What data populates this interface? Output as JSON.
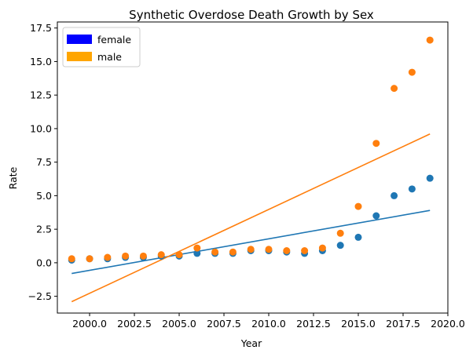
{
  "chart_data": {
    "type": "scatter",
    "title": "Synthetic Overdose Death Growth by Sex",
    "xlabel": "Year",
    "ylabel": "Rate",
    "xlim": [
      1998.2,
      2020.0
    ],
    "ylim": [
      -3.75,
      17.95
    ],
    "xticks": [
      "2000.0",
      "2002.5",
      "2005.0",
      "2007.5",
      "2010.0",
      "2012.5",
      "2015.0",
      "2017.5",
      "2020.0"
    ],
    "xtick_values": [
      2000.0,
      2002.5,
      2005.0,
      2007.5,
      2010.0,
      2012.5,
      2015.0,
      2017.5,
      2020.0
    ],
    "yticks": [
      "−2.5",
      "0.0",
      "2.5",
      "5.0",
      "7.5",
      "10.0",
      "12.5",
      "15.0",
      "17.5"
    ],
    "ytick_values": [
      -2.5,
      0.0,
      2.5,
      5.0,
      7.5,
      10.0,
      12.5,
      15.0,
      17.5
    ],
    "grid": false,
    "legend_position": "top-left",
    "x": [
      1999,
      2000,
      2001,
      2002,
      2003,
      2004,
      2005,
      2006,
      2007,
      2008,
      2009,
      2010,
      2011,
      2012,
      2013,
      2014,
      2015,
      2016,
      2017,
      2018,
      2019
    ],
    "series": [
      {
        "name": "female",
        "legend_color": "#0000ff",
        "color": "#1f77b4",
        "values": [
          0.2,
          0.3,
          0.3,
          0.4,
          0.4,
          0.5,
          0.5,
          0.7,
          0.7,
          0.7,
          0.9,
          0.9,
          0.8,
          0.7,
          0.9,
          1.3,
          1.9,
          3.5,
          5.0,
          5.5,
          6.3
        ],
        "fit": {
          "x": [
            1999,
            2019
          ],
          "y": [
            -0.8,
            3.9
          ]
        }
      },
      {
        "name": "male",
        "legend_color": "#ffa500",
        "color": "#ff7f0e",
        "values": [
          0.3,
          0.3,
          0.4,
          0.5,
          0.5,
          0.6,
          0.6,
          1.1,
          0.8,
          0.8,
          1.0,
          1.0,
          0.9,
          0.9,
          1.1,
          2.2,
          4.2,
          8.9,
          13.0,
          14.2,
          16.6
        ],
        "fit": {
          "x": [
            1999,
            2019
          ],
          "y": [
            -2.9,
            9.6
          ]
        }
      }
    ]
  }
}
